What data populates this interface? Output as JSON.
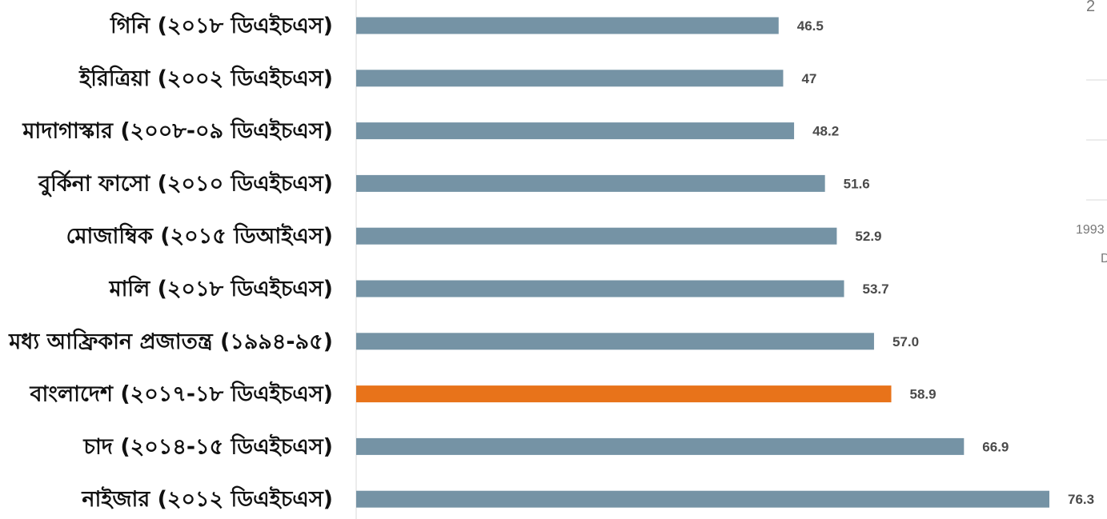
{
  "chart_data": {
    "type": "bar",
    "orientation": "horizontal",
    "categories": [
      "গিনি (২০১৮ ডিএইচএস)",
      "ইরিত্রিয়া (২০০২ ডিএইচএস)",
      "মাদাগাস্কার (২০০৮-০৯ ডিএইচএস)",
      "বুর্কিনা ফাসো (২০১০ ডিএইচএস)",
      "মোজাম্বিক (২০১৫ ডিআইএস)",
      "মালি (২০১৮ ডিএইচএস)",
      "মধ্য আফ্রিকান প্রজাতন্ত্র (১৯৯৪-৯৫)",
      "বাংলাদেশ (২০১৭-১৮ ডিএইচএস)",
      "চাদ (২০১৪-১৫ ডিএইচএস)",
      "নাইজার (২০১২ ডিএইচএস)"
    ],
    "values": [
      46.5,
      47,
      48.2,
      51.6,
      52.9,
      53.7,
      57.0,
      58.9,
      66.9,
      76.3
    ],
    "value_labels": [
      "46.5",
      "47",
      "48.2",
      "51.6",
      "52.9",
      "53.7",
      "57.0",
      "58.9",
      "66.9",
      "76.3"
    ],
    "colors": [
      "#7593A5",
      "#7593A5",
      "#7593A5",
      "#7593A5",
      "#7593A5",
      "#7593A5",
      "#7593A5",
      "#E8731A",
      "#7593A5",
      "#7593A5"
    ],
    "highlight": "বাংলাদেশ (২০১৭-১৮ ডিএইচএস)",
    "title": "",
    "xlabel": "",
    "ylabel": "",
    "xlim": [
      0,
      76.3
    ],
    "grid": false,
    "legend": "none"
  },
  "adjacent_fragment": {
    "text_top": "2",
    "text_year": "1993",
    "text_bottom": "D"
  }
}
